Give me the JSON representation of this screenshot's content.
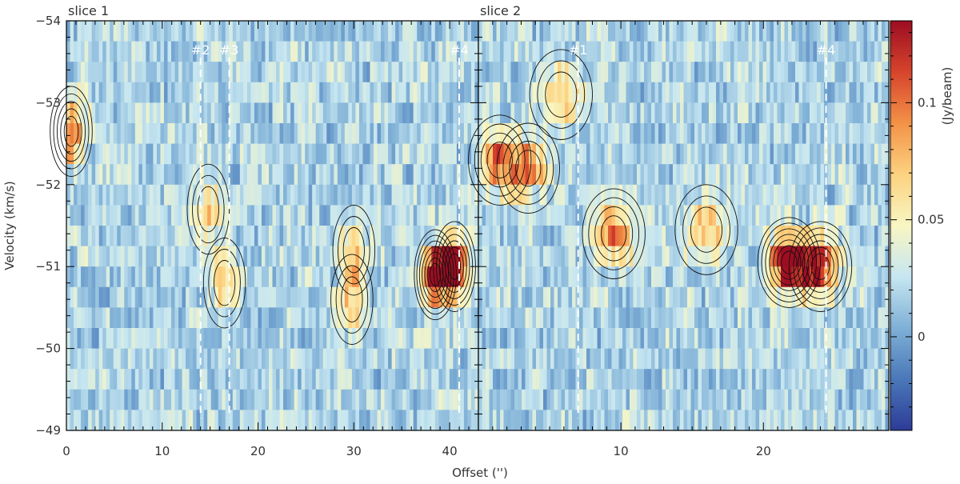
{
  "chart_data": {
    "type": "heatmap",
    "ylabel": "Velocity (km/s)",
    "xlabel": "Offset ('')",
    "ylim": [
      -54,
      -49
    ],
    "y_ticks": [
      -54,
      -53,
      -52,
      -51,
      -50,
      -49
    ],
    "y_tick_labels": [
      "−54",
      "−53",
      "−52",
      "−51",
      "−50",
      "−49"
    ],
    "colorbar": {
      "label": "(Jy/beam)",
      "range": [
        -0.04,
        0.135
      ],
      "ticks": [
        0,
        0.05,
        0.1
      ],
      "tick_labels": [
        "0",
        "0.05",
        "0.1"
      ],
      "colormap": [
        "#2d3b97",
        "#4a78b9",
        "#7fb0d6",
        "#c6e6f1",
        "#f8f6c3",
        "#fcd27f",
        "#f39247",
        "#d6442c",
        "#9c0d22"
      ]
    },
    "panels": [
      {
        "title": "slice 1",
        "xlim": [
          0,
          43
        ],
        "x_ticks": [
          0,
          10,
          20,
          30,
          40
        ],
        "x_tick_labels": [
          "0",
          "10",
          "20",
          "30",
          "40"
        ],
        "markers": [
          {
            "label": "#2",
            "x": 14.0
          },
          {
            "label": "#3",
            "x": 17.0
          },
          {
            "label": "#4",
            "x": 41.0
          }
        ],
        "emission_peaks": [
          {
            "x": 0.5,
            "v": -52.65,
            "peak": 0.1
          },
          {
            "x": 14.8,
            "v": -51.7,
            "peak": 0.05
          },
          {
            "x": 16.5,
            "v": -50.8,
            "peak": 0.055
          },
          {
            "x": 29.8,
            "v": -50.6,
            "peak": 0.06
          },
          {
            "x": 30.0,
            "v": -51.2,
            "peak": 0.055
          },
          {
            "x": 38.5,
            "v": -50.9,
            "peak": 0.13
          },
          {
            "x": 40.5,
            "v": -51.0,
            "peak": 0.12
          }
        ]
      },
      {
        "title": "slice 2",
        "xlim": [
          0,
          28.8
        ],
        "x_ticks": [
          0,
          10,
          20
        ],
        "x_tick_labels": [
          "",
          "10",
          "20"
        ],
        "markers": [
          {
            "label": "#1",
            "x": 7.0
          },
          {
            "label": "#4",
            "x": 24.4
          }
        ],
        "emission_peaks": [
          {
            "x": 1.5,
            "v": -52.3,
            "peak": 0.08
          },
          {
            "x": 3.5,
            "v": -52.2,
            "peak": 0.07
          },
          {
            "x": 5.8,
            "v": -53.1,
            "peak": 0.06
          },
          {
            "x": 9.5,
            "v": -51.4,
            "peak": 0.085
          },
          {
            "x": 16.0,
            "v": -51.45,
            "peak": 0.065
          },
          {
            "x": 21.8,
            "v": -51.05,
            "peak": 0.13
          },
          {
            "x": 24.0,
            "v": -51.0,
            "peak": 0.11
          }
        ]
      }
    ]
  }
}
